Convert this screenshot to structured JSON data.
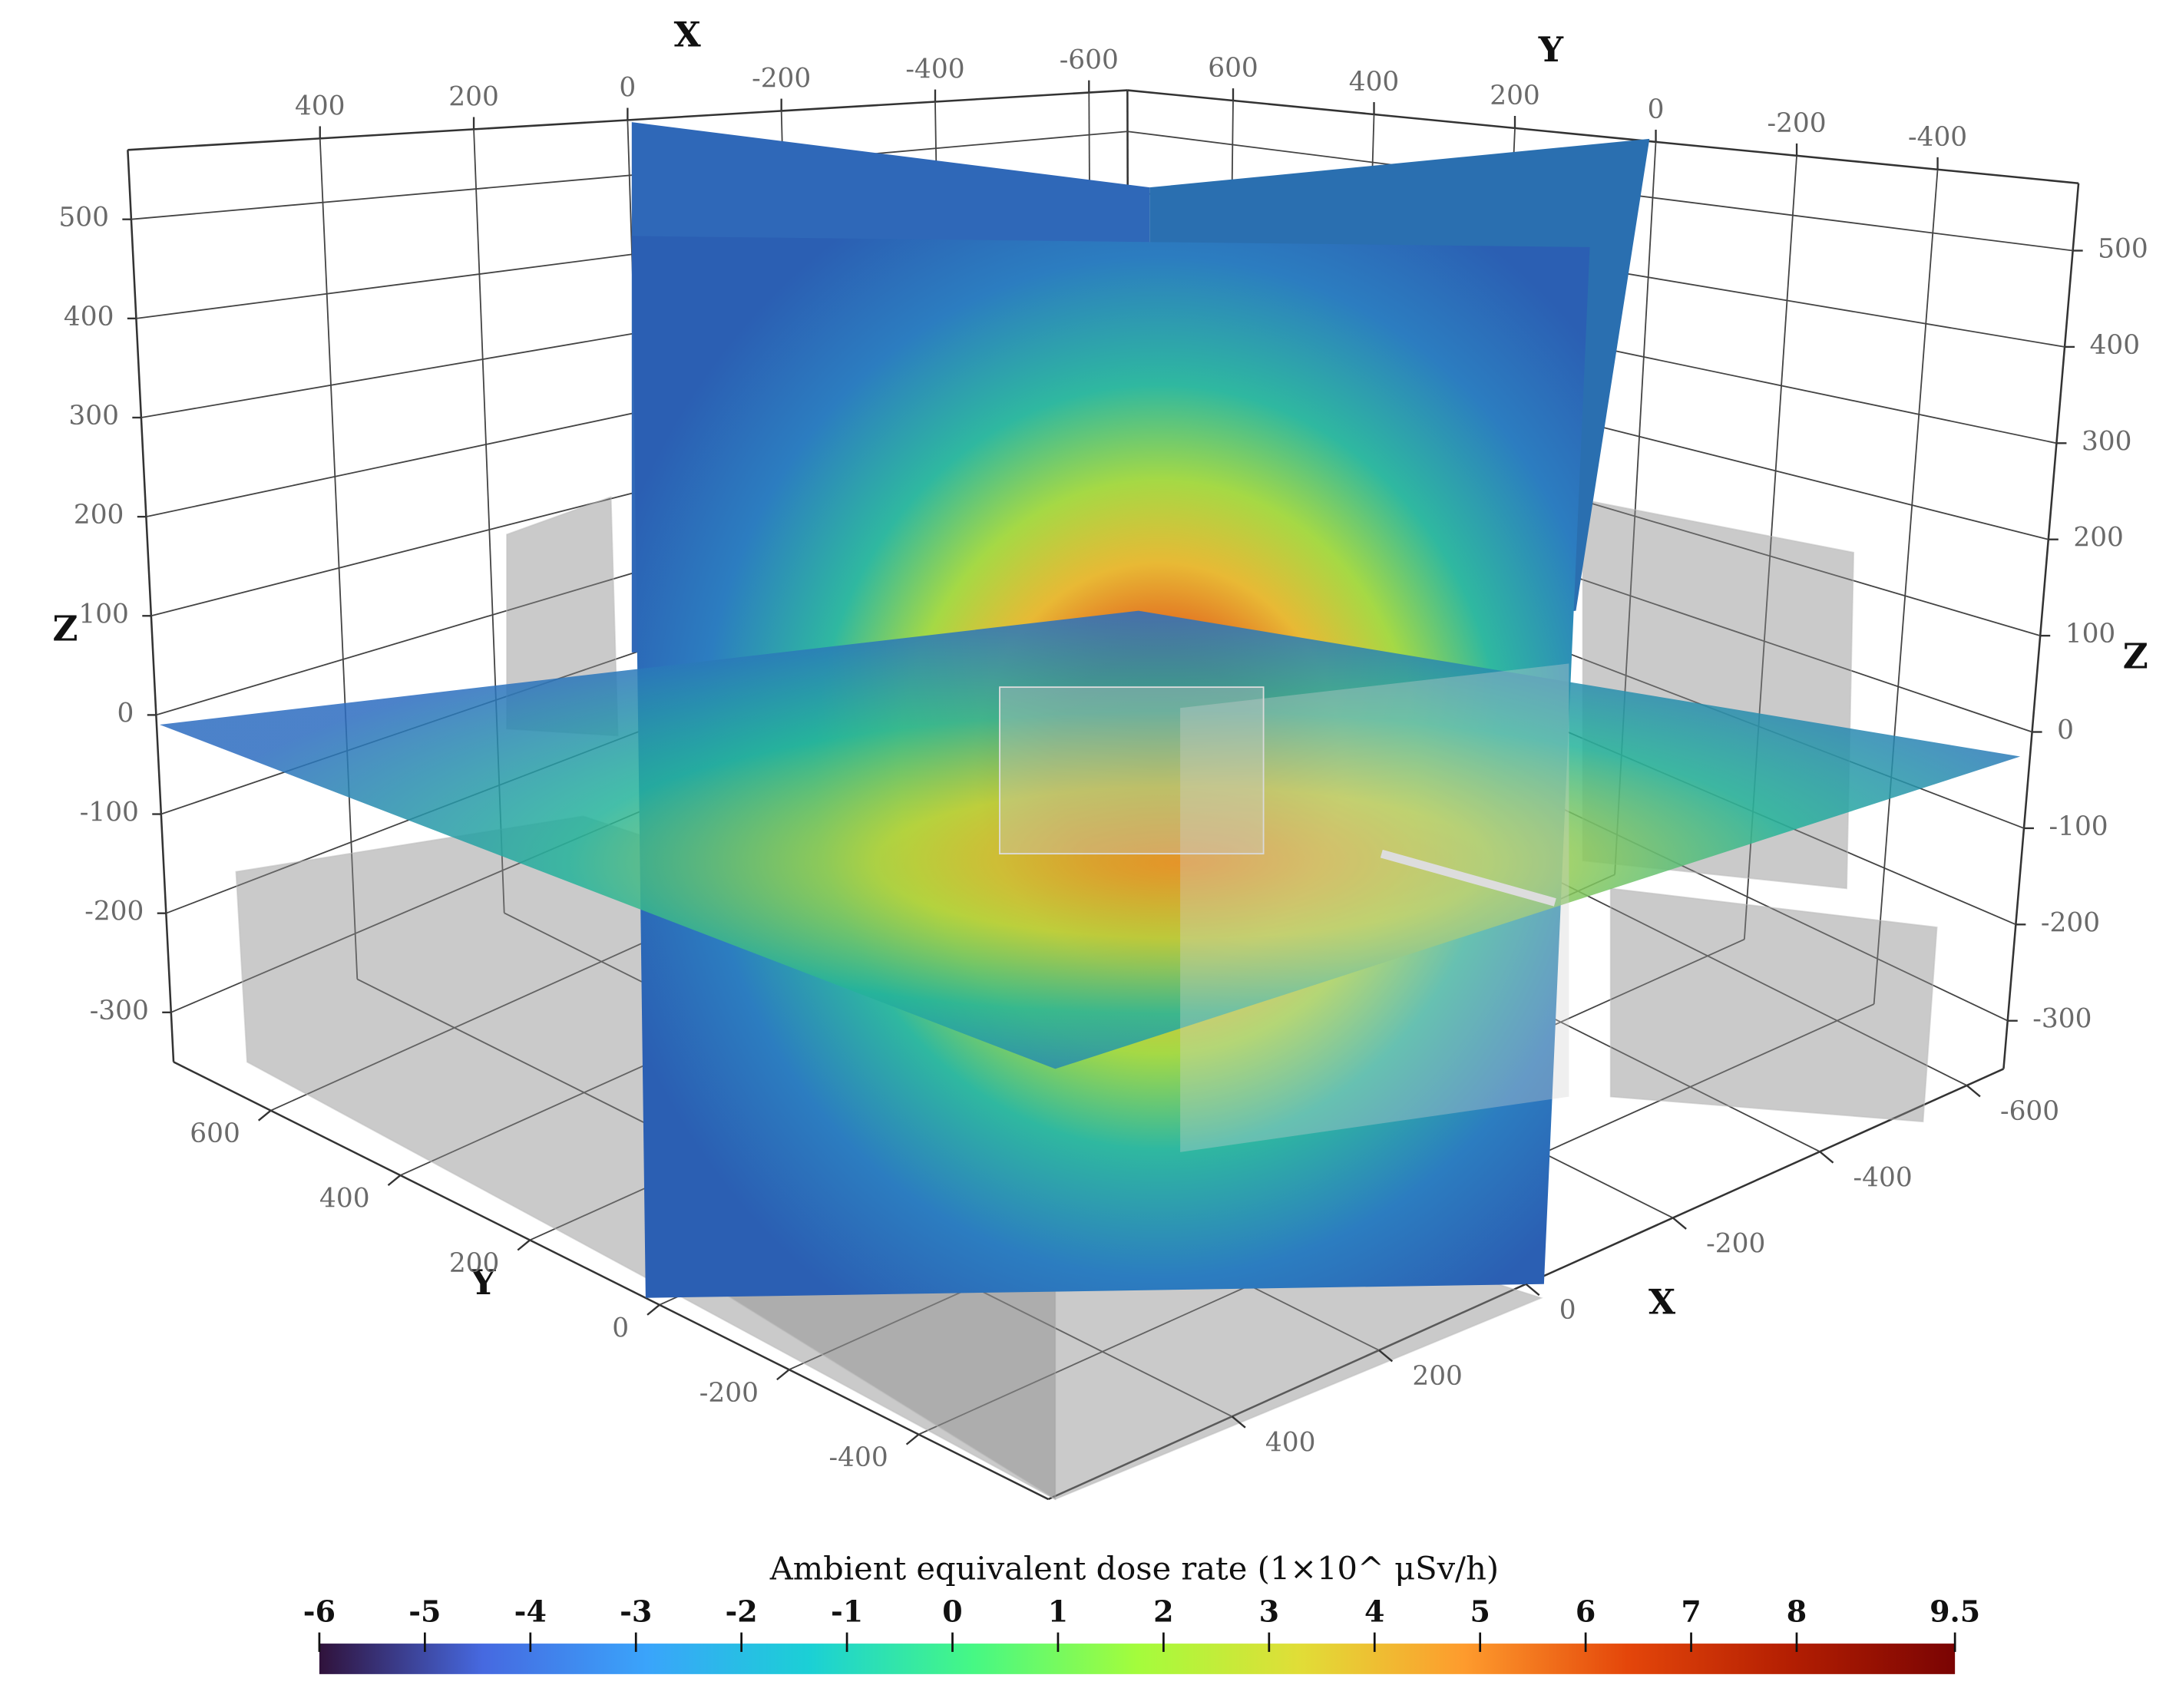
{
  "chart_data": {
    "type": "volume-slices",
    "axes": {
      "x_label": "X",
      "y_label": "Y",
      "z_label": "Z",
      "xlim": [
        -650,
        650
      ],
      "xticks": [
        -600,
        -400,
        -200,
        0,
        200,
        400
      ],
      "ylim": [
        -600,
        750
      ],
      "yticks": [
        -400,
        -200,
        0,
        200,
        400,
        600
      ],
      "zlim": [
        -350,
        570
      ],
      "zticks": [
        -300,
        -200,
        -100,
        0,
        100,
        200,
        300,
        400,
        500
      ]
    },
    "grid": true,
    "colorbar": {
      "title": "Ambient equivalent dose rate (1×10^ μSv/h)",
      "lim": [
        -6,
        9.5
      ],
      "ticks": [
        -6,
        -5,
        -4,
        -3,
        -2,
        -1,
        0,
        1,
        2,
        3,
        4,
        5,
        6,
        7,
        8,
        9.5
      ],
      "colors": [
        "#30123b",
        "#4669e0",
        "#3aa4fb",
        "#1bd0d5",
        "#46f884",
        "#a4fc3c",
        "#e1dd37",
        "#fe9b2d",
        "#e4460a",
        "#b31e02",
        "#7a0403"
      ]
    }
  }
}
